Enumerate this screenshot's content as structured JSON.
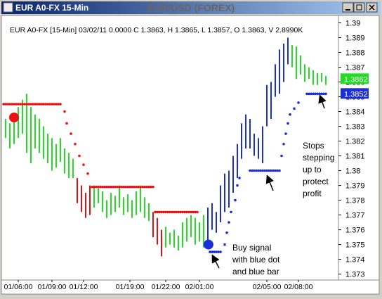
{
  "window_title": "EUR A0-FX 15-Min",
  "chart_data": {
    "type": "range-bar",
    "title": "EUR/USD (FOREX)",
    "info": "EUR A0-FX [15-Min] 03/02/11  0.0000 C 1.3863, H 1.3865, L 1.3857, O 1.3863, V 2.8990K",
    "xlim": [
      0,
      160
    ],
    "ylim": [
      1.3726,
      1.3905
    ],
    "yticks": [
      1.373,
      1.374,
      1.375,
      1.376,
      1.377,
      1.378,
      1.379,
      1.38,
      1.381,
      1.382,
      1.383,
      1.384,
      1.385,
      1.386,
      1.387,
      1.388,
      1.389,
      1.39
    ],
    "xticks": [
      {
        "value": 8,
        "label": "01/06:00"
      },
      {
        "value": 24,
        "label": "01/09:00"
      },
      {
        "value": 39,
        "label": "01/12:00"
      },
      {
        "value": 61,
        "label": "01/19:00"
      },
      {
        "value": 78,
        "label": "01/22:00"
      },
      {
        "value": 94,
        "label": "02/01:00"
      },
      {
        "value": 126,
        "label": "02/05:00"
      },
      {
        "value": 141,
        "label": "02/08:00"
      }
    ],
    "bars": [
      {
        "color": "#22dd22",
        "x": [
          2,
          4,
          6,
          8,
          10,
          12,
          14,
          16,
          18,
          20,
          22,
          24,
          26,
          28,
          30,
          32,
          34
        ],
        "high": [
          1.3835,
          1.3832,
          1.3838,
          1.3843,
          1.3848,
          1.3852,
          1.3843,
          1.3838,
          1.3835,
          1.383,
          1.3825,
          1.3822,
          1.3818,
          1.3822,
          1.3815,
          1.3812,
          1.3808
        ],
        "low": [
          1.3822,
          1.3815,
          1.3818,
          1.3822,
          1.3825,
          1.3812,
          1.3805,
          1.3815,
          1.3812,
          1.3808,
          1.3805,
          1.38,
          1.3802,
          1.3806,
          1.3798,
          1.3795,
          1.3795
        ]
      },
      {
        "color": "#dd1111",
        "x": [
          36,
          38,
          40,
          42
        ],
        "high": [
          1.3795,
          1.379,
          1.3785,
          1.379
        ],
        "low": [
          1.3778,
          1.3772,
          1.3768,
          1.377
        ]
      },
      {
        "color": "#22dd22",
        "x": [
          44,
          46,
          48,
          50,
          52,
          54,
          56,
          58,
          60,
          62,
          64,
          66,
          68,
          70
        ],
        "high": [
          1.379,
          1.3788,
          1.3786,
          1.378,
          1.3785,
          1.3783,
          1.379,
          1.3782,
          1.3784,
          1.378,
          1.3786,
          1.379,
          1.3782,
          1.3778
        ],
        "low": [
          1.3775,
          1.3778,
          1.3772,
          1.3768,
          1.377,
          1.3772,
          1.3775,
          1.377,
          1.3772,
          1.3768,
          1.377,
          1.3772,
          1.3768,
          1.3766
        ]
      },
      {
        "color": "#dd1111",
        "x": [
          72,
          74,
          76
        ],
        "high": [
          1.3772,
          1.3768,
          1.376
        ],
        "low": [
          1.3755,
          1.375,
          1.3742
        ]
      },
      {
        "color": "#22dd22",
        "x": [
          78,
          80,
          82,
          84,
          86,
          88,
          90,
          92,
          94,
          96
        ],
        "high": [
          1.3762,
          1.3758,
          1.376,
          1.3756,
          1.3765,
          1.3768,
          1.377,
          1.3768,
          1.3765,
          1.377
        ],
        "low": [
          1.3748,
          1.375,
          1.3748,
          1.3746,
          1.3748,
          1.3752,
          1.3755,
          1.375,
          1.3752,
          1.3748
        ]
      },
      {
        "color": "#1a2fd8",
        "x": [
          98,
          100,
          102,
          104,
          106,
          108,
          110,
          112,
          114,
          116,
          118,
          120,
          122,
          124,
          126,
          128,
          130,
          132,
          134,
          136
        ],
        "high": [
          1.3775,
          1.3778,
          1.3772,
          1.379,
          1.3798,
          1.38,
          1.381,
          1.3818,
          1.3832,
          1.3838,
          1.3835,
          1.3825,
          1.3822,
          1.383,
          1.3858,
          1.386,
          1.3872,
          1.3882,
          1.3886,
          1.389
        ],
        "low": [
          1.3748,
          1.376,
          1.3758,
          1.3765,
          1.3772,
          1.3775,
          1.3785,
          1.3795,
          1.3808,
          1.3815,
          1.3815,
          1.381,
          1.3808,
          1.3805,
          1.383,
          1.3835,
          1.385,
          1.3852,
          1.386,
          1.3872
        ]
      },
      {
        "color": "#22dd22",
        "x": [
          138,
          140,
          142,
          144,
          146,
          148,
          150,
          152,
          154
        ],
        "high": [
          1.3885,
          1.3884,
          1.3878,
          1.3872,
          1.387,
          1.3868,
          1.3866,
          1.3866,
          1.3864
        ],
        "low": [
          1.387,
          1.3862,
          1.3865,
          1.386,
          1.3862,
          1.3858,
          1.3858,
          1.386,
          1.3858
        ]
      }
    ],
    "dots": [
      {
        "color": "#ee1111",
        "x": [
          1,
          2,
          3,
          4,
          5,
          6,
          7,
          8,
          9,
          10,
          11,
          12,
          13,
          14,
          15,
          16,
          17,
          18,
          19,
          20,
          21,
          22,
          23,
          24,
          25,
          26,
          27,
          28,
          30,
          31,
          33,
          35,
          37,
          39,
          41,
          43,
          44,
          45,
          46,
          47,
          48,
          49,
          50,
          51,
          52,
          53,
          54,
          55,
          56,
          57,
          58,
          59,
          60,
          61,
          62,
          63,
          64,
          65,
          66,
          67,
          68,
          69,
          70,
          71,
          72,
          73,
          74,
          75,
          76,
          77,
          78,
          79,
          80,
          81,
          82,
          83,
          84,
          85,
          86,
          87,
          88,
          89,
          90,
          91,
          92,
          93
        ],
        "values": [
          1.3845,
          1.3845,
          1.3845,
          1.3845,
          1.3845,
          1.3845,
          1.3845,
          1.3845,
          1.3845,
          1.3845,
          1.3845,
          1.3845,
          1.3845,
          1.3845,
          1.3845,
          1.3845,
          1.3845,
          1.3845,
          1.3845,
          1.3845,
          1.3845,
          1.3845,
          1.3845,
          1.3845,
          1.3845,
          1.3845,
          1.3845,
          1.3845,
          1.384,
          1.3832,
          1.3825,
          1.3818,
          1.381,
          1.3804,
          1.3798,
          1.3789,
          1.3789,
          1.3789,
          1.3789,
          1.3789,
          1.3789,
          1.3789,
          1.3789,
          1.3789,
          1.3789,
          1.3789,
          1.3789,
          1.3789,
          1.3789,
          1.3789,
          1.3789,
          1.3789,
          1.3789,
          1.3789,
          1.3789,
          1.3789,
          1.3789,
          1.3789,
          1.3789,
          1.3789,
          1.3789,
          1.3789,
          1.3789,
          1.3789,
          1.3789,
          1.3772,
          1.3772,
          1.3772,
          1.3772,
          1.3772,
          1.3772,
          1.3772,
          1.3772,
          1.3772,
          1.3772,
          1.3772,
          1.3772,
          1.3772,
          1.3772,
          1.3772,
          1.3772,
          1.3772,
          1.3772,
          1.3772,
          1.3772,
          1.3772
        ]
      },
      {
        "color": "#1a2fd8",
        "x": [
          99,
          100,
          101,
          102,
          103,
          104,
          106,
          107,
          108,
          109,
          111,
          112,
          113,
          118,
          119,
          120,
          121,
          122,
          123,
          124,
          125,
          126,
          127,
          128,
          129,
          130,
          131,
          132,
          133,
          134,
          135,
          136,
          137,
          139,
          141,
          145,
          146,
          147,
          148,
          149,
          150,
          151,
          152,
          153,
          154
        ],
        "values": [
          1.3745,
          1.3745,
          1.3745,
          1.3745,
          1.3745,
          1.3745,
          1.375,
          1.3758,
          1.3765,
          1.3772,
          1.378,
          1.379,
          1.3795,
          1.38,
          1.38,
          1.38,
          1.38,
          1.38,
          1.38,
          1.38,
          1.38,
          1.38,
          1.38,
          1.38,
          1.38,
          1.38,
          1.38,
          1.38,
          1.381,
          1.3818,
          1.3825,
          1.3832,
          1.3838,
          1.3842,
          1.3846,
          1.3852,
          1.3852,
          1.3852,
          1.3852,
          1.3852,
          1.3852,
          1.3852,
          1.3852,
          1.3852,
          1.3852
        ]
      }
    ],
    "signals": [
      {
        "color": "#ee1111",
        "x": 6,
        "value": 1.3836
      },
      {
        "color": "#1a2fd8",
        "x": 98.3,
        "value": 1.375
      }
    ],
    "price_labels": [
      {
        "value": 1.3862,
        "color": "#22dd22"
      },
      {
        "value": 1.3852,
        "color": "#1a2fd8"
      }
    ],
    "annotations": [
      {
        "lines": [
          "Buy signal",
          "with blue dot",
          "and blue bar"
        ]
      },
      {
        "lines": [
          "Stops",
          "stepping",
          "up to",
          "protect",
          "profit"
        ]
      }
    ]
  }
}
